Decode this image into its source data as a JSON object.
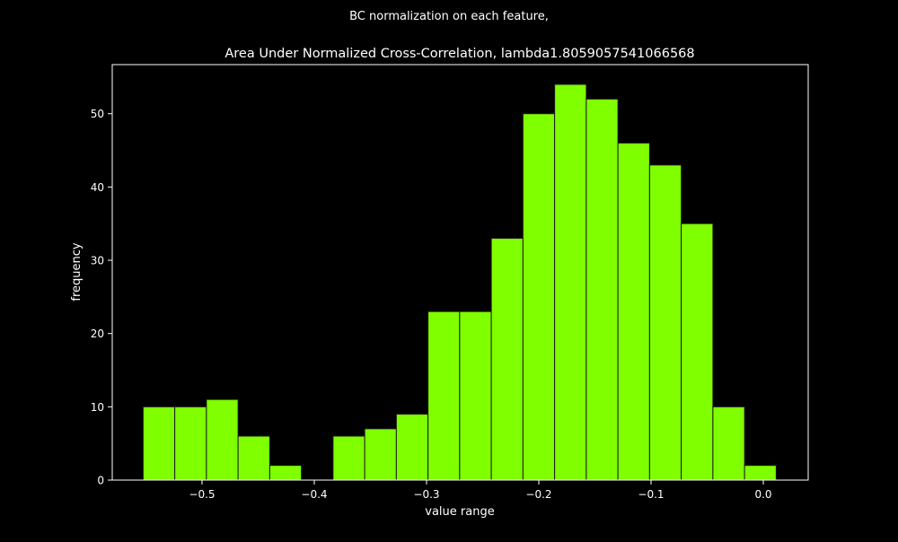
{
  "chart_data": {
    "type": "bar",
    "suptitle": "BC normalization on each feature,",
    "title": "Area Under Normalized Cross-Correlation, lambda1.8059057541066568",
    "xlabel": "value range",
    "ylabel": "frequency",
    "xlim": [
      -0.58,
      0.04
    ],
    "ylim": [
      0,
      56.7
    ],
    "xticks": [
      -0.5,
      -0.4,
      -0.3,
      -0.2,
      -0.1,
      0.0
    ],
    "xtick_labels": [
      "−0.5",
      "−0.4",
      "−0.3",
      "−0.2",
      "−0.1",
      "0.0"
    ],
    "yticks": [
      0,
      10,
      20,
      30,
      40,
      50
    ],
    "yticks_labels": [
      "0",
      "10",
      "20",
      "30",
      "40",
      "50"
    ],
    "bin_start": -0.5525,
    "bin_width": 0.0282,
    "values": [
      10,
      10,
      11,
      6,
      2,
      0,
      6,
      7,
      9,
      23,
      23,
      33,
      50,
      54,
      52,
      46,
      43,
      35,
      10,
      2
    ],
    "grid": false,
    "colors": {
      "bar": "#7fff00",
      "edge": "#1a1a1a",
      "axes": "#ffffff",
      "background": "#000000"
    }
  }
}
